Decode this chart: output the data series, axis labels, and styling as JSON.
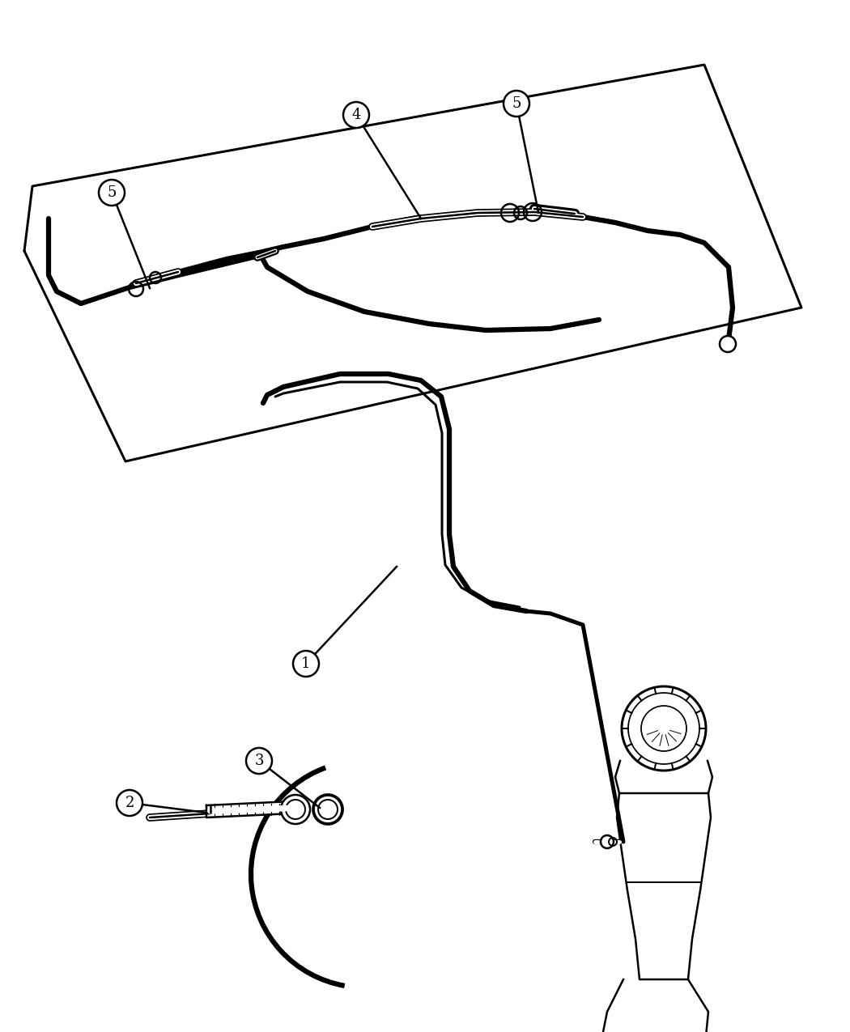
{
  "bg_color": "#ffffff",
  "line_color": "#000000",
  "lw": 1.8,
  "tlw": 4.5,
  "mlw": 7.0,
  "fs": 13
}
